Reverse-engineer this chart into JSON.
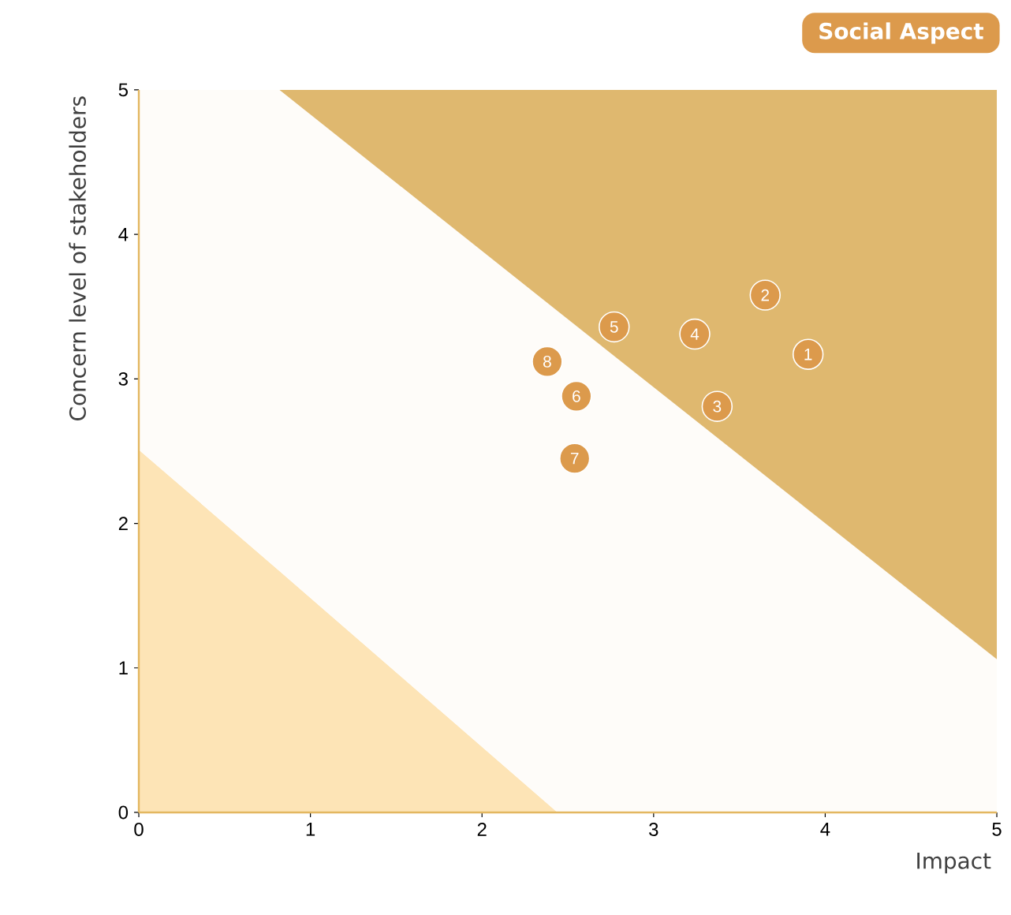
{
  "chart_data": {
    "type": "scatter",
    "title": "Social Aspect",
    "xlabel": "Impact",
    "ylabel": "Concern level of stakeholders",
    "xlim": [
      0,
      5
    ],
    "ylim": [
      0,
      5
    ],
    "xticks": [
      0,
      1,
      2,
      3,
      4,
      5
    ],
    "yticks": [
      0,
      1,
      2,
      3,
      4,
      5
    ],
    "stacked": true,
    "series": [
      {
        "type": "area",
        "color": "#fde4b6",
        "x": [
          0,
          0.82,
          2.44,
          5
        ],
        "values": [
          2.51,
          1.67,
          0,
          0
        ]
      },
      {
        "type": "area",
        "color": "#fefcf9",
        "x": [
          0,
          0.82,
          2.44,
          5
        ],
        "values": [
          2.49,
          3.33,
          3.47,
          1.06
        ]
      },
      {
        "type": "area",
        "color": "#dfb86f",
        "x": [
          0,
          0.82,
          2.44,
          5
        ],
        "values": [
          0,
          0,
          1.53,
          3.94
        ]
      },
      {
        "color": "#dc9a4c",
        "marker": "circle",
        "x": [
          3.9,
          3.65,
          3.37,
          3.24,
          2.77,
          2.55,
          2.54,
          2.38
        ],
        "values": [
          3.17,
          3.58,
          2.81,
          3.31,
          3.36,
          2.88,
          2.45,
          3.12
        ]
      }
    ],
    "annotations": [
      {
        "text": "1",
        "x": 3.9,
        "y": 3.17
      },
      {
        "text": "2",
        "x": 3.65,
        "y": 3.58
      },
      {
        "text": "3",
        "x": 3.37,
        "y": 2.81
      },
      {
        "text": "4",
        "x": 3.24,
        "y": 3.31
      },
      {
        "text": "5",
        "x": 2.77,
        "y": 3.36
      },
      {
        "text": "6",
        "x": 2.55,
        "y": 2.88
      },
      {
        "text": "7",
        "x": 2.54,
        "y": 2.45
      },
      {
        "text": "8",
        "x": 2.38,
        "y": 3.12
      }
    ]
  }
}
